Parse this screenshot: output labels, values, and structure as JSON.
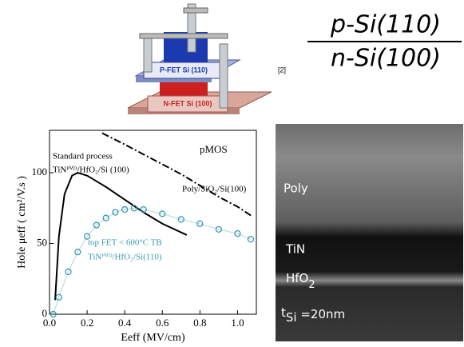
{
  "slide": {
    "fraction_top": "p-Si(110)",
    "fraction_bottom": "n-Si(100)",
    "reference": "[2]"
  },
  "diagram": {
    "labels": [
      "P-FET  Si (110)",
      "N-FET Si (100)"
    ]
  },
  "tem": {
    "labels": [
      "Poly",
      "TiN"
    ],
    "hfo": [
      "HfO",
      "2"
    ],
    "tsi": [
      "t",
      "Si",
      " =20nm"
    ]
  },
  "chart_data": {
    "type": "line",
    "x_label": "Eeff (MV/cm)",
    "y_label": "Hole μeff ( cm²/V.s )",
    "annotations": [
      "Standard process",
      "pMOS",
      "top FET < 600°C TB"
    ],
    "xlim": [
      0,
      1.1
    ],
    "xticks": [
      {
        "value": 0,
        "label": "0.0"
      },
      0.2,
      0.4,
      0.6,
      0.8,
      {
        "value": 1,
        "label": "1.0"
      }
    ],
    "ylim": [
      0,
      130
    ],
    "yticks": [
      0,
      50,
      100
    ],
    "series": [
      {
        "name": "TiNᴾⱽᴰ/HfO₂/Si (100)",
        "color": "#000000",
        "style": "solid",
        "x": [
          0.03,
          0.05,
          0.08,
          0.12,
          0.15,
          0.2,
          0.3,
          0.4,
          0.5,
          0.6,
          0.73
        ],
        "values": [
          10,
          55,
          85,
          98,
          100,
          98,
          90,
          81,
          72,
          64,
          56
        ]
      },
      {
        "name": "Poly/SiO₂/Si(100)",
        "color": "#000000",
        "style": "dashdot",
        "x": [
          0.28,
          0.4,
          0.5,
          0.6,
          0.7,
          0.8,
          0.9,
          1.0,
          1.08
        ],
        "values": [
          128,
          120,
          113,
          106,
          99,
          91,
          83,
          76,
          69
        ]
      },
      {
        "name": "TiNᴾⱽᴰ/HfO₂/Si(110)",
        "color": "#3a9ab0",
        "style": "markers",
        "x": [
          0.02,
          0.05,
          0.1,
          0.15,
          0.2,
          0.25,
          0.3,
          0.35,
          0.4,
          0.45,
          0.5,
          0.6,
          0.7,
          0.8,
          0.9,
          1.0,
          1.07
        ],
        "values": [
          0,
          12,
          30,
          44,
          55,
          63,
          68,
          72,
          74,
          75,
          74,
          71,
          67,
          64,
          60,
          57,
          53
        ]
      }
    ]
  }
}
